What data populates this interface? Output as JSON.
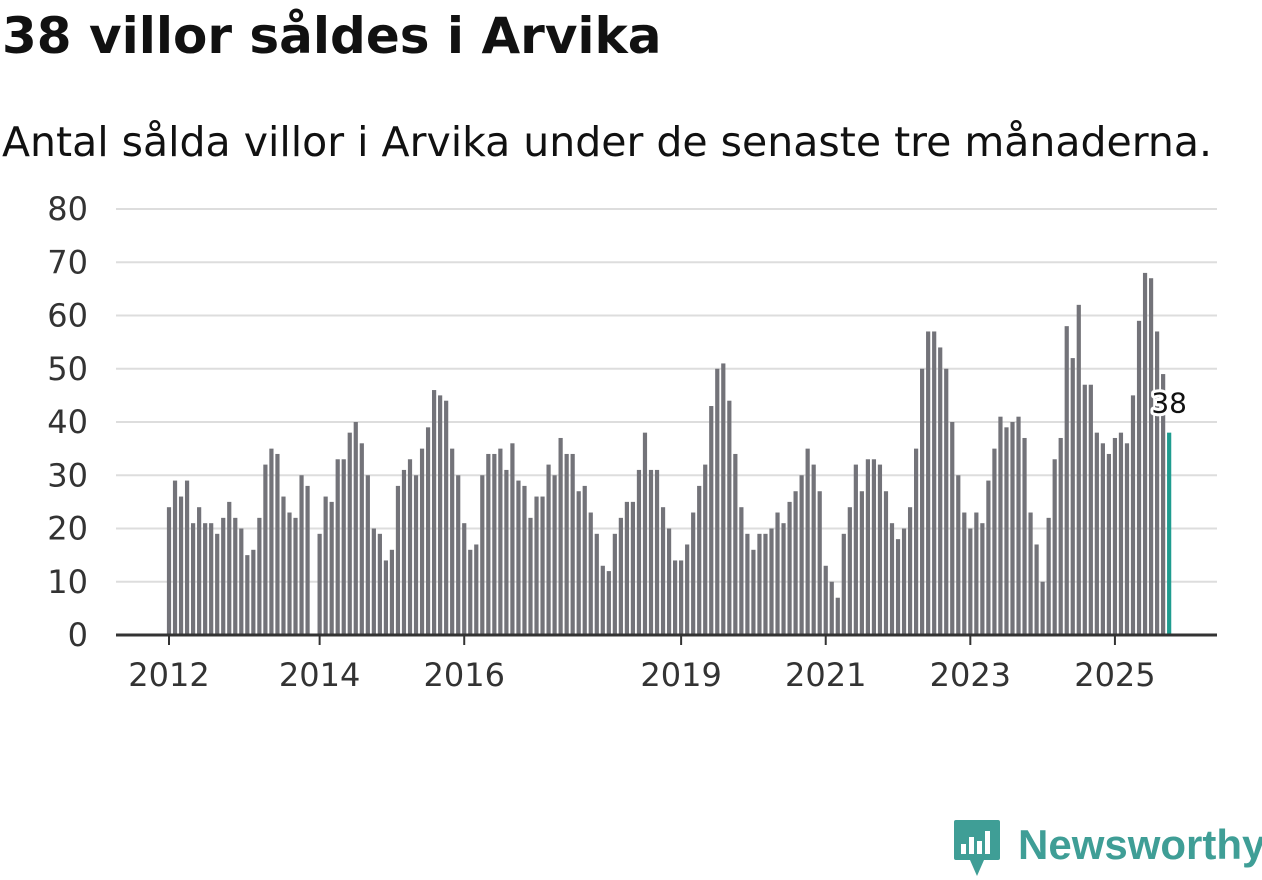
{
  "header": {
    "title": "38 villor såldes i Arvika",
    "subtitle": "Antal sålda villor i Arvika under de senaste tre månaderna."
  },
  "brand": {
    "name": "Newsworthy",
    "icon": "newsworthy-logo-icon"
  },
  "colors": {
    "bar": "#737379",
    "highlight": "#1f9c8f",
    "grid": "#dddddd",
    "axis": "#333333",
    "brand": "#3f9e96"
  },
  "chart_data": {
    "type": "bar",
    "title": "38 villor såldes i Arvika",
    "subtitle": "Antal sålda villor i Arvika under de senaste tre månaderna.",
    "xlabel": "",
    "ylabel": "",
    "ylim": [
      0,
      80
    ],
    "yticks": [
      "0",
      "10",
      "20",
      "30",
      "40",
      "50",
      "60",
      "70",
      "80"
    ],
    "grid": true,
    "x_ticks": [
      {
        "label": "2012",
        "index": 0
      },
      {
        "label": "2014",
        "index": 24
      },
      {
        "label": "2016",
        "index": 48
      },
      {
        "label": "2019",
        "index": 84
      },
      {
        "label": "2021",
        "index": 108
      },
      {
        "label": "2023",
        "index": 132
      },
      {
        "label": "2025",
        "index": 156
      }
    ],
    "gaps": [
      {
        "after_index": 23,
        "months": 1
      }
    ],
    "values": [
      24,
      29,
      26,
      29,
      21,
      24,
      21,
      21,
      19,
      22,
      25,
      22,
      20,
      15,
      16,
      22,
      32,
      35,
      34,
      26,
      23,
      22,
      30,
      28,
      19,
      26,
      25,
      33,
      33,
      38,
      40,
      36,
      30,
      20,
      19,
      14,
      16,
      28,
      31,
      33,
      30,
      35,
      39,
      46,
      45,
      44,
      35,
      30,
      21,
      16,
      17,
      30,
      34,
      34,
      35,
      31,
      36,
      29,
      28,
      22,
      26,
      26,
      32,
      30,
      37,
      34,
      34,
      27,
      28,
      23,
      19,
      13,
      12,
      19,
      22,
      25,
      25,
      31,
      38,
      31,
      31,
      24,
      20,
      14,
      14,
      17,
      23,
      28,
      32,
      43,
      50,
      51,
      44,
      34,
      24,
      19,
      16,
      19,
      19,
      20,
      23,
      21,
      25,
      27,
      30,
      35,
      32,
      27,
      13,
      10,
      7,
      19,
      24,
      32,
      27,
      33,
      33,
      32,
      27,
      21,
      18,
      20,
      24,
      35,
      50,
      57,
      57,
      54,
      50,
      40,
      30,
      23,
      20,
      23,
      21,
      29,
      35,
      41,
      39,
      40,
      41,
      37,
      23,
      17,
      10,
      22,
      33,
      37,
      58,
      52,
      62,
      47,
      47,
      38,
      36,
      34,
      37,
      38,
      36,
      45,
      59,
      68,
      67,
      57,
      49,
      38
    ],
    "highlight_last": true,
    "last_label": "38"
  }
}
